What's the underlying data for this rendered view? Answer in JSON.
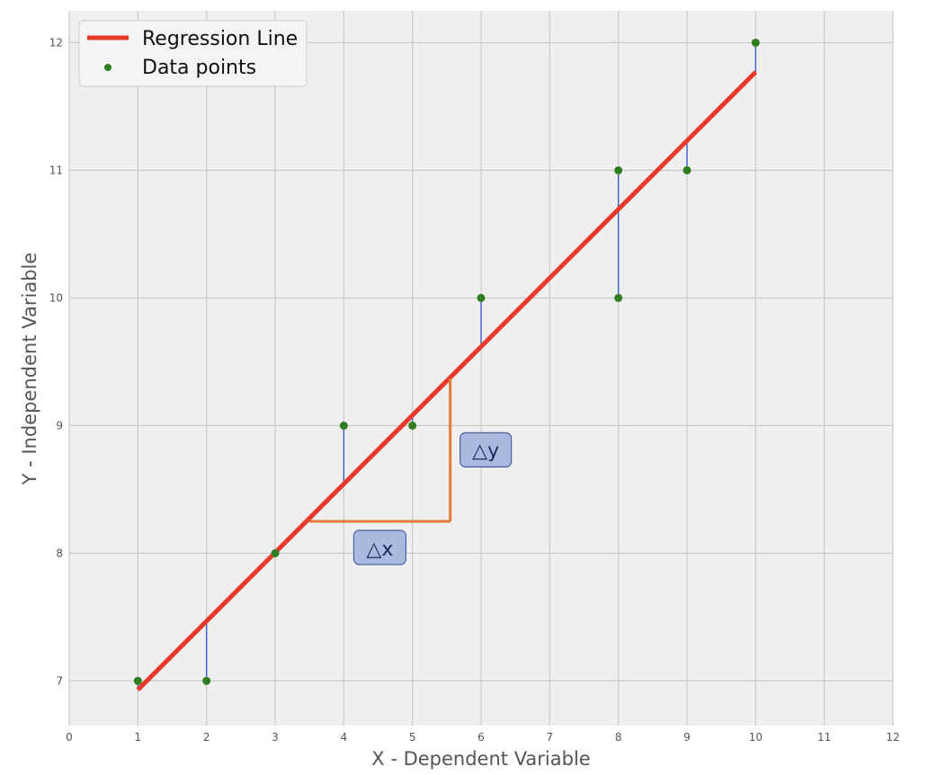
{
  "chart_data": {
    "type": "scatter",
    "title": "",
    "xlabel": "X - Dependent Variable",
    "ylabel": "Y - Independent Variable",
    "xlim": [
      0,
      12
    ],
    "ylim": [
      6.65,
      12.25
    ],
    "xticks": [
      0,
      1,
      2,
      3,
      4,
      5,
      6,
      7,
      8,
      9,
      10,
      11,
      12
    ],
    "yticks": [
      7,
      8,
      9,
      10,
      11,
      12
    ],
    "grid": true,
    "legend_position": "top-left",
    "series": [
      {
        "name": "Data points",
        "kind": "scatter",
        "color": "#2f7d1f",
        "x": [
          1,
          2,
          3,
          4,
          5,
          6,
          8,
          8,
          9,
          10
        ],
        "y": [
          7,
          7,
          8,
          9,
          9,
          10,
          11,
          10,
          11,
          12
        ]
      },
      {
        "name": "Regression Line",
        "kind": "line",
        "color": "#e8392a",
        "x": [
          1,
          10
        ],
        "y": [
          6.93,
          11.77
        ]
      }
    ],
    "residual_color": "#3a5fcd",
    "annotations": [
      {
        "label": "△x",
        "kind": "delta-x",
        "x_start": 3.5,
        "x_end": 5.55,
        "y": 8.25
      },
      {
        "label": "△y",
        "kind": "delta-y",
        "x": 5.55,
        "y_start": 8.25,
        "y_end": 9.37
      }
    ],
    "annotation_color": "#e07b39",
    "annotation_box_color": "#a9b9e0"
  }
}
